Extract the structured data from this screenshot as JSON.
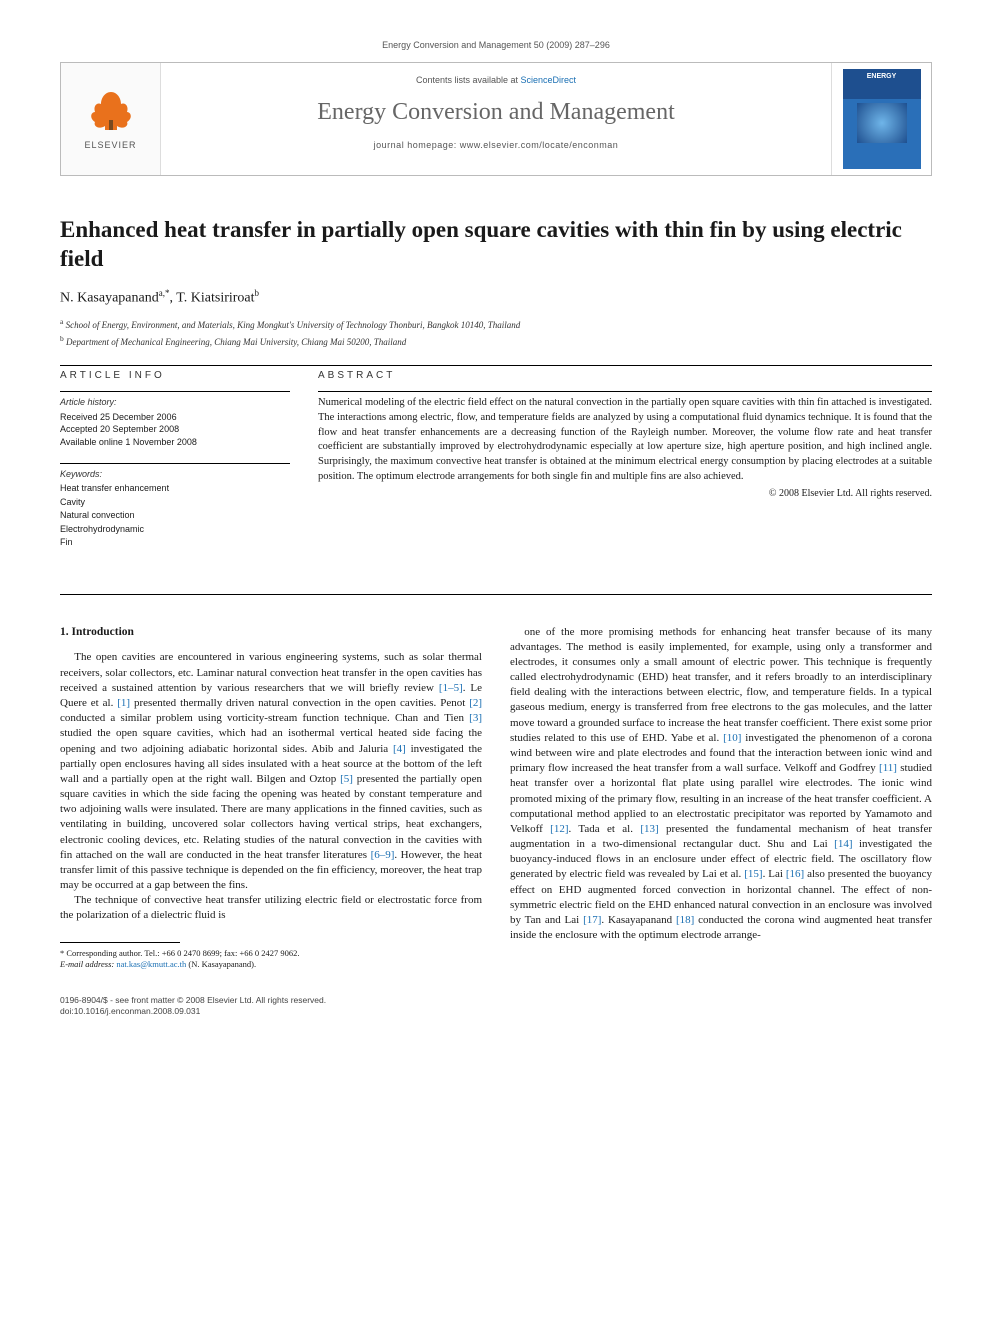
{
  "header_citation": "Energy Conversion and Management 50 (2009) 287–296",
  "masthead": {
    "contents_prefix": "Contents lists available at ",
    "contents_link": "ScienceDirect",
    "journal_name": "Energy Conversion and Management",
    "homepage_prefix": "journal homepage: ",
    "homepage_url": "www.elsevier.com/locate/enconman",
    "publisher_word": "ELSEVIER",
    "cover_title": "ENERGY"
  },
  "article": {
    "title": "Enhanced heat transfer in partially open square cavities with thin fin by using electric field",
    "authors_html_parts": {
      "a1_name": "N. Kasayapanand",
      "a1_sup": "a,*",
      "sep": ", ",
      "a2_name": "T. Kiatsiriroat",
      "a2_sup": "b"
    },
    "affiliations": {
      "a": "School of Energy, Environment, and Materials, King Mongkut's University of Technology Thonburi, Bangkok 10140, Thailand",
      "b": "Department of Mechanical Engineering, Chiang Mai University, Chiang Mai 50200, Thailand"
    }
  },
  "info": {
    "article_info_head": "article info",
    "history_label": "Article history:",
    "received": "Received 25 December 2006",
    "accepted": "Accepted 20 September 2008",
    "online": "Available online 1 November 2008",
    "keywords_label": "Keywords:",
    "keywords": [
      "Heat transfer enhancement",
      "Cavity",
      "Natural convection",
      "Electrohydrodynamic",
      "Fin"
    ]
  },
  "abstract": {
    "head": "abstract",
    "text": "Numerical modeling of the electric field effect on the natural convection in the partially open square cavities with thin fin attached is investigated. The interactions among electric, flow, and temperature fields are analyzed by using a computational fluid dynamics technique. It is found that the flow and heat transfer enhancements are a decreasing function of the Rayleigh number. Moreover, the volume flow rate and heat transfer coefficient are substantially improved by electrohydrodynamic especially at low aperture size, high aperture position, and high inclined angle. Surprisingly, the maximum convective heat transfer is obtained at the minimum electrical energy consumption by placing electrodes at a suitable position. The optimum electrode arrangements for both single fin and multiple fins are also achieved.",
    "copyright": "© 2008 Elsevier Ltd. All rights reserved."
  },
  "body": {
    "intro_heading": "1. Introduction",
    "col1_p1": "The open cavities are encountered in various engineering systems, such as solar thermal receivers, solar collectors, etc. Laminar natural convection heat transfer in the open cavities has received a sustained attention by various researchers that we will briefly review [1–5]. Le Quere et al. [1] presented thermally driven natural convection in the open cavities. Penot [2] conducted a similar problem using vorticity-stream function technique. Chan and Tien [3] studied the open square cavities, which had an isothermal vertical heated side facing the opening and two adjoining adiabatic horizontal sides. Abib and Jaluria [4] investigated the partially open enclosures having all sides insulated with a heat source at the bottom of the left wall and a partially open at the right wall. Bilgen and Oztop [5] presented the partially open square cavities in which the side facing the opening was heated by constant temperature and two adjoining walls were insulated. There are many applications in the finned cavities, such as ventilating in building, uncovered solar collectors having vertical strips, heat exchangers, electronic cooling devices, etc. Relating studies of the natural convection in the cavities with fin attached on the wall are conducted in the heat transfer literatures [6–9]. However, the heat transfer limit of this passive technique is depended on the fin efficiency, moreover, the heat trap may be occurred at a gap between the fins.",
    "col1_p2": "The technique of convective heat transfer utilizing electric field or electrostatic force from the polarization of a dielectric fluid is",
    "col2_p1": "one of the more promising methods for enhancing heat transfer because of its many advantages. The method is easily implemented, for example, using only a transformer and electrodes, it consumes only a small amount of electric power. This technique is frequently called electrohydrodynamic (EHD) heat transfer, and it refers broadly to an interdisciplinary field dealing with the interactions between electric, flow, and temperature fields. In a typical gaseous medium, energy is transferred from free electrons to the gas molecules, and the latter move toward a grounded surface to increase the heat transfer coefficient. There exist some prior studies related to this use of EHD. Yabe et al. [10] investigated the phenomenon of a corona wind between wire and plate electrodes and found that the interaction between ionic wind and primary flow increased the heat transfer from a wall surface. Velkoff and Godfrey [11] studied heat transfer over a horizontal flat plate using parallel wire electrodes. The ionic wind promoted mixing of the primary flow, resulting in an increase of the heat transfer coefficient. A computational method applied to an electrostatic precipitator was reported by Yamamoto and Velkoff [12]. Tada et al. [13] presented the fundamental mechanism of heat transfer augmentation in a two-dimensional rectangular duct. Shu and Lai [14] investigated the buoyancy-induced flows in an enclosure under effect of electric field. The oscillatory flow generated by electric field was revealed by Lai et al. [15]. Lai [16] also presented the buoyancy effect on EHD augmented forced convection in horizontal channel. The effect of non-symmetric electric field on the EHD enhanced natural convection in an enclosure was involved by Tan and Lai [17]. Kasayapanand [18] conducted the corona wind augmented heat transfer inside the enclosure with the optimum electrode arrange-"
  },
  "footnote": {
    "corr_label": "* Corresponding author. Tel.: +66 0 2470 8699; fax: +66 0 2427 9062.",
    "email_label": "E-mail address:",
    "email": "nat.kas@kmutt.ac.th",
    "email_who": "(N. Kasayapanand)."
  },
  "footer": {
    "issn_line": "0196-8904/$ - see front matter © 2008 Elsevier Ltd. All rights reserved.",
    "doi_line": "doi:10.1016/j.enconman.2008.09.031"
  },
  "colors": {
    "link": "#1a6fb3",
    "elsevier_orange": "#e9711c",
    "cover_blue_dark": "#1e4f8f",
    "cover_blue_light": "#2a6fb8"
  }
}
